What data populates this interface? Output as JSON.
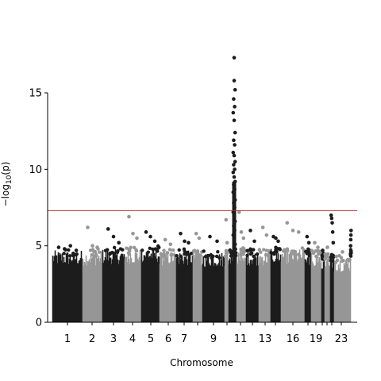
{
  "chart_data": {
    "type": "scatter",
    "title": "",
    "xlabel": "Chromosome",
    "ylabel": "−log10(p)",
    "ylim": [
      0,
      18.5
    ],
    "yticks": [
      0,
      5,
      10,
      15
    ],
    "xtick_labels": [
      "1",
      "2",
      "3",
      "4",
      "5",
      "6",
      "7",
      "9",
      "11",
      "13",
      "16",
      "19",
      "23"
    ],
    "significance_line": 7.3,
    "colors": {
      "dark": "#1c1c1c",
      "light": "#969696",
      "threshold": "#b03030"
    },
    "chromosomes": [
      {
        "chr": "1",
        "color": "dark",
        "base_max": 4.6,
        "top": [
          4.9,
          4.8,
          5.0,
          4.7
        ]
      },
      {
        "chr": "2",
        "color": "light",
        "base_max": 4.6,
        "top": [
          6.2,
          5.0,
          4.9
        ]
      },
      {
        "chr": "3",
        "color": "dark",
        "base_max": 4.7,
        "top": [
          6.1,
          5.6,
          5.2
        ]
      },
      {
        "chr": "4",
        "color": "light",
        "base_max": 4.7,
        "top": [
          6.9,
          5.8,
          5.5
        ]
      },
      {
        "chr": "5",
        "color": "dark",
        "base_max": 4.8,
        "top": [
          5.9,
          5.6,
          5.3
        ]
      },
      {
        "chr": "6",
        "color": "light",
        "base_max": 4.6,
        "top": [
          5.4,
          5.1
        ]
      },
      {
        "chr": "7",
        "color": "dark",
        "base_max": 4.6,
        "top": [
          5.8,
          5.3,
          5.2
        ]
      },
      {
        "chr": "8",
        "color": "light",
        "base_max": 4.5,
        "top": [
          5.8,
          5.5
        ]
      },
      {
        "chr": "9",
        "color": "dark",
        "base_max": 4.5,
        "top": [
          5.6,
          5.3
        ]
      },
      {
        "chr": "10",
        "color": "light",
        "base_max": 4.5,
        "top": [
          6.7,
          5.2
        ]
      },
      {
        "chr": "11",
        "color": "dark",
        "base_max": 4.6,
        "top": [
          17.3,
          15.8,
          15.2,
          14.6,
          14.1,
          13.7,
          13.2,
          12.4,
          11.9,
          11.6,
          11.1,
          10.9,
          10.5,
          10.3,
          10.0,
          9.8,
          9.5,
          9.2,
          9.0,
          8.7,
          8.5,
          8.2,
          8.0,
          7.8,
          7.5,
          7.2,
          6.9,
          6.6,
          6.3,
          6.0,
          5.7,
          5.4,
          5.1
        ]
      },
      {
        "chr": "12",
        "color": "light",
        "base_max": 4.7,
        "top": [
          7.2,
          5.9,
          5.5
        ]
      },
      {
        "chr": "13",
        "color": "dark",
        "base_max": 4.6,
        "top": [
          6.0,
          5.3
        ]
      },
      {
        "chr": "14",
        "color": "light",
        "base_max": 4.6,
        "top": [
          6.2,
          5.7
        ]
      },
      {
        "chr": "15",
        "color": "dark",
        "base_max": 4.7,
        "top": [
          5.6,
          5.5,
          5.3
        ]
      },
      {
        "chr": "16",
        "color": "light",
        "base_max": 4.7,
        "top": [
          6.5,
          6.0,
          5.9
        ]
      },
      {
        "chr": "17",
        "color": "dark",
        "base_max": 4.6,
        "top": [
          5.6,
          5.2
        ]
      },
      {
        "chr": "18",
        "color": "light",
        "base_max": 4.5,
        "top": [
          5.2,
          4.9
        ]
      },
      {
        "chr": "19",
        "color": "dark",
        "base_max": 4.4,
        "top": [
          4.7,
          4.5
        ]
      },
      {
        "chr": "20",
        "color": "light",
        "base_max": 4.3,
        "top": [
          4.9
        ]
      },
      {
        "chr": "21",
        "color": "dark",
        "base_max": 4.3,
        "top": [
          7.0,
          6.8,
          6.5,
          5.9,
          5.2
        ]
      },
      {
        "chr": "22",
        "color": "light",
        "base_max": 4.2,
        "top": [
          4.6
        ]
      },
      {
        "chr": "23",
        "color": "dark",
        "base_max": 4.6,
        "top": [
          6.0,
          5.7,
          5.4,
          5.0
        ]
      }
    ]
  }
}
